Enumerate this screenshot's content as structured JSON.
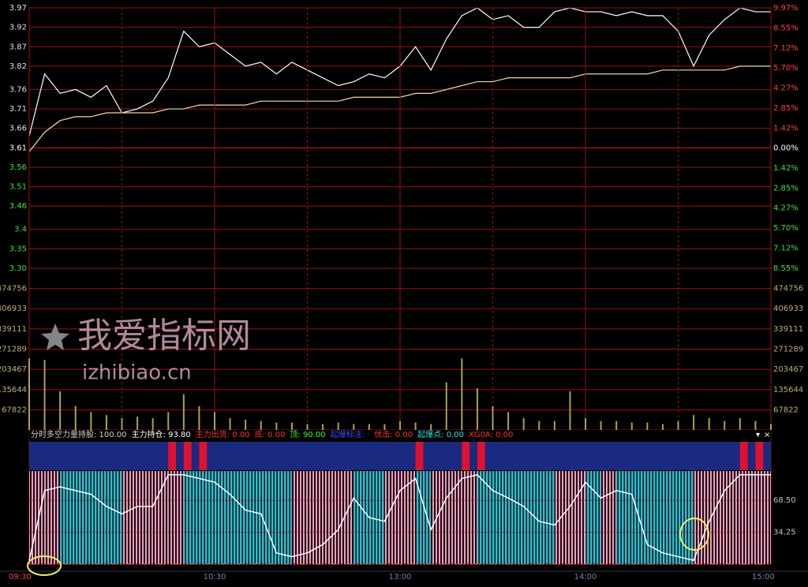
{
  "chart_data": [
    {
      "type": "line",
      "xlim": [
        0,
        240
      ],
      "x": [
        0,
        5,
        10,
        15,
        20,
        25,
        30,
        35,
        40,
        45,
        50,
        55,
        60,
        65,
        70,
        75,
        80,
        85,
        90,
        95,
        100,
        105,
        110,
        115,
        120,
        125,
        130,
        135,
        140,
        145,
        150,
        155,
        160,
        165,
        170,
        175,
        180,
        185,
        190,
        195,
        200,
        205,
        210,
        215,
        220,
        225,
        230,
        235,
        240
      ],
      "xticks": [
        {
          "value": 0,
          "label": "09:30"
        },
        {
          "value": 60,
          "label": "10:30"
        },
        {
          "value": 120,
          "label": "13:00"
        },
        {
          "value": 180,
          "label": "14:00"
        },
        {
          "value": 240,
          "label": "15:00"
        }
      ],
      "xminor": [
        30,
        90,
        150,
        210
      ],
      "ylim": [
        3.3,
        3.97
      ],
      "yticks": [
        3.97,
        3.92,
        3.87,
        3.82,
        3.76,
        3.71,
        3.66,
        3.61,
        3.56,
        3.51,
        3.46,
        3.4,
        3.35,
        {
          "value": 3.3,
          "label": "3.30"
        }
      ],
      "base": 3.61,
      "y2lim": [
        -8.55,
        9.97
      ],
      "y2ticks": [
        {
          "value": 9.97,
          "label": "9.97%"
        },
        {
          "value": 8.55,
          "label": "8.55%"
        },
        {
          "value": 7.12,
          "label": "7.12%"
        },
        {
          "value": 5.7,
          "label": "5.70%"
        },
        {
          "value": 4.27,
          "label": "4.27%"
        },
        {
          "value": 2.85,
          "label": "2.85%"
        },
        {
          "value": 1.42,
          "label": "1.42%"
        },
        {
          "value": 0,
          "label": "0.00%"
        },
        {
          "value": -1.42,
          "label": "1.42%"
        },
        {
          "value": -2.85,
          "label": "2.85%"
        },
        {
          "value": -4.27,
          "label": "4.27%"
        },
        {
          "value": -5.7,
          "label": "5.70%"
        },
        {
          "value": -7.12,
          "label": "7.12%"
        },
        {
          "value": -8.55,
          "label": "8.55%"
        }
      ],
      "up_color": "#ff4040",
      "down_color": "#40e040",
      "grid_color": "#9a1010",
      "series": [
        {
          "color": "#ffffff",
          "values": [
            3.64,
            3.8,
            3.75,
            3.76,
            3.74,
            3.77,
            3.7,
            3.71,
            3.73,
            3.79,
            3.91,
            3.87,
            3.88,
            3.85,
            3.82,
            3.83,
            3.8,
            3.83,
            3.81,
            3.79,
            3.77,
            3.78,
            3.8,
            3.79,
            3.82,
            3.87,
            3.81,
            3.89,
            3.95,
            3.97,
            3.94,
            3.95,
            3.92,
            3.92,
            3.96,
            3.97,
            3.96,
            3.96,
            3.95,
            3.96,
            3.95,
            3.95,
            3.91,
            3.82,
            3.9,
            3.94,
            3.97,
            3.96,
            3.96
          ]
        },
        {
          "color": "#e8e0a0",
          "values": [
            3.6,
            3.65,
            3.68,
            3.69,
            3.69,
            3.7,
            3.7,
            3.7,
            3.7,
            3.71,
            3.71,
            3.72,
            3.72,
            3.72,
            3.72,
            3.73,
            3.73,
            3.73,
            3.73,
            3.73,
            3.73,
            3.74,
            3.74,
            3.74,
            3.74,
            3.75,
            3.75,
            3.76,
            3.77,
            3.78,
            3.78,
            3.79,
            3.79,
            3.79,
            3.79,
            3.79,
            3.8,
            3.8,
            3.8,
            3.8,
            3.8,
            3.81,
            3.81,
            3.81,
            3.81,
            3.81,
            3.82,
            3.82,
            3.82
          ]
        }
      ]
    },
    {
      "type": "bar",
      "ylim": [
        0,
        542576
      ],
      "yticks": [
        474756,
        406933,
        339111,
        271289,
        203467,
        135644,
        67822
      ],
      "color": "#b0a050",
      "values": [
        240000,
        235000,
        130000,
        80000,
        60000,
        50000,
        40000,
        45000,
        40000,
        60000,
        120000,
        80000,
        60000,
        40000,
        35000,
        30000,
        25000,
        25000,
        20000,
        20000,
        25000,
        20000,
        20000,
        20000,
        30000,
        25000,
        20000,
        160000,
        240000,
        140000,
        80000,
        60000,
        40000,
        30000,
        30000,
        130000,
        40000,
        30000,
        30000,
        25000,
        25000,
        20000,
        30000,
        50000,
        40000,
        30000,
        40000,
        30000,
        20000
      ]
    },
    {
      "type": "indicator",
      "ylim": [
        0,
        100
      ],
      "title": "分时多空力量",
      "header": [
        {
          "text": "持股: 100.00",
          "color": "#d0d0d0"
        },
        {
          "text": "主力持仓: 93.80",
          "color": "#ffffff"
        },
        {
          "text": "主力出货: 0.00",
          "color": "#ff3030"
        },
        {
          "text": "底: 0.00",
          "color": "#ff3030"
        },
        {
          "text": "顶: 90.00",
          "color": "#30ff30"
        },
        {
          "text": "起爆标注: ·",
          "color": "#3050ff"
        },
        {
          "text": "伏击: 0.00",
          "color": "#ff3030"
        },
        {
          "text": "起爆点: 0.00",
          "color": "#30e0e0"
        },
        {
          "text": "XG0A: 0.00",
          "color": "#ff3030"
        }
      ],
      "yticks": [
        {
          "value": 68.5,
          "label": "68.50"
        },
        {
          "value": 34.25,
          "label": "34.25"
        }
      ],
      "color": "#ffffff",
      "values": [
        4,
        79,
        83,
        79,
        75,
        62,
        54,
        62,
        62,
        96,
        96,
        92,
        88,
        75,
        58,
        54,
        12,
        8,
        12,
        21,
        37,
        71,
        50,
        46,
        79,
        92,
        37,
        71,
        92,
        96,
        79,
        71,
        62,
        46,
        42,
        62,
        88,
        71,
        79,
        75,
        21,
        12,
        8,
        4,
        46,
        79,
        96,
        96,
        96
      ]
    }
  ],
  "watermark": {
    "title": "我爱指标网",
    "url": "izhibiao.cn"
  }
}
